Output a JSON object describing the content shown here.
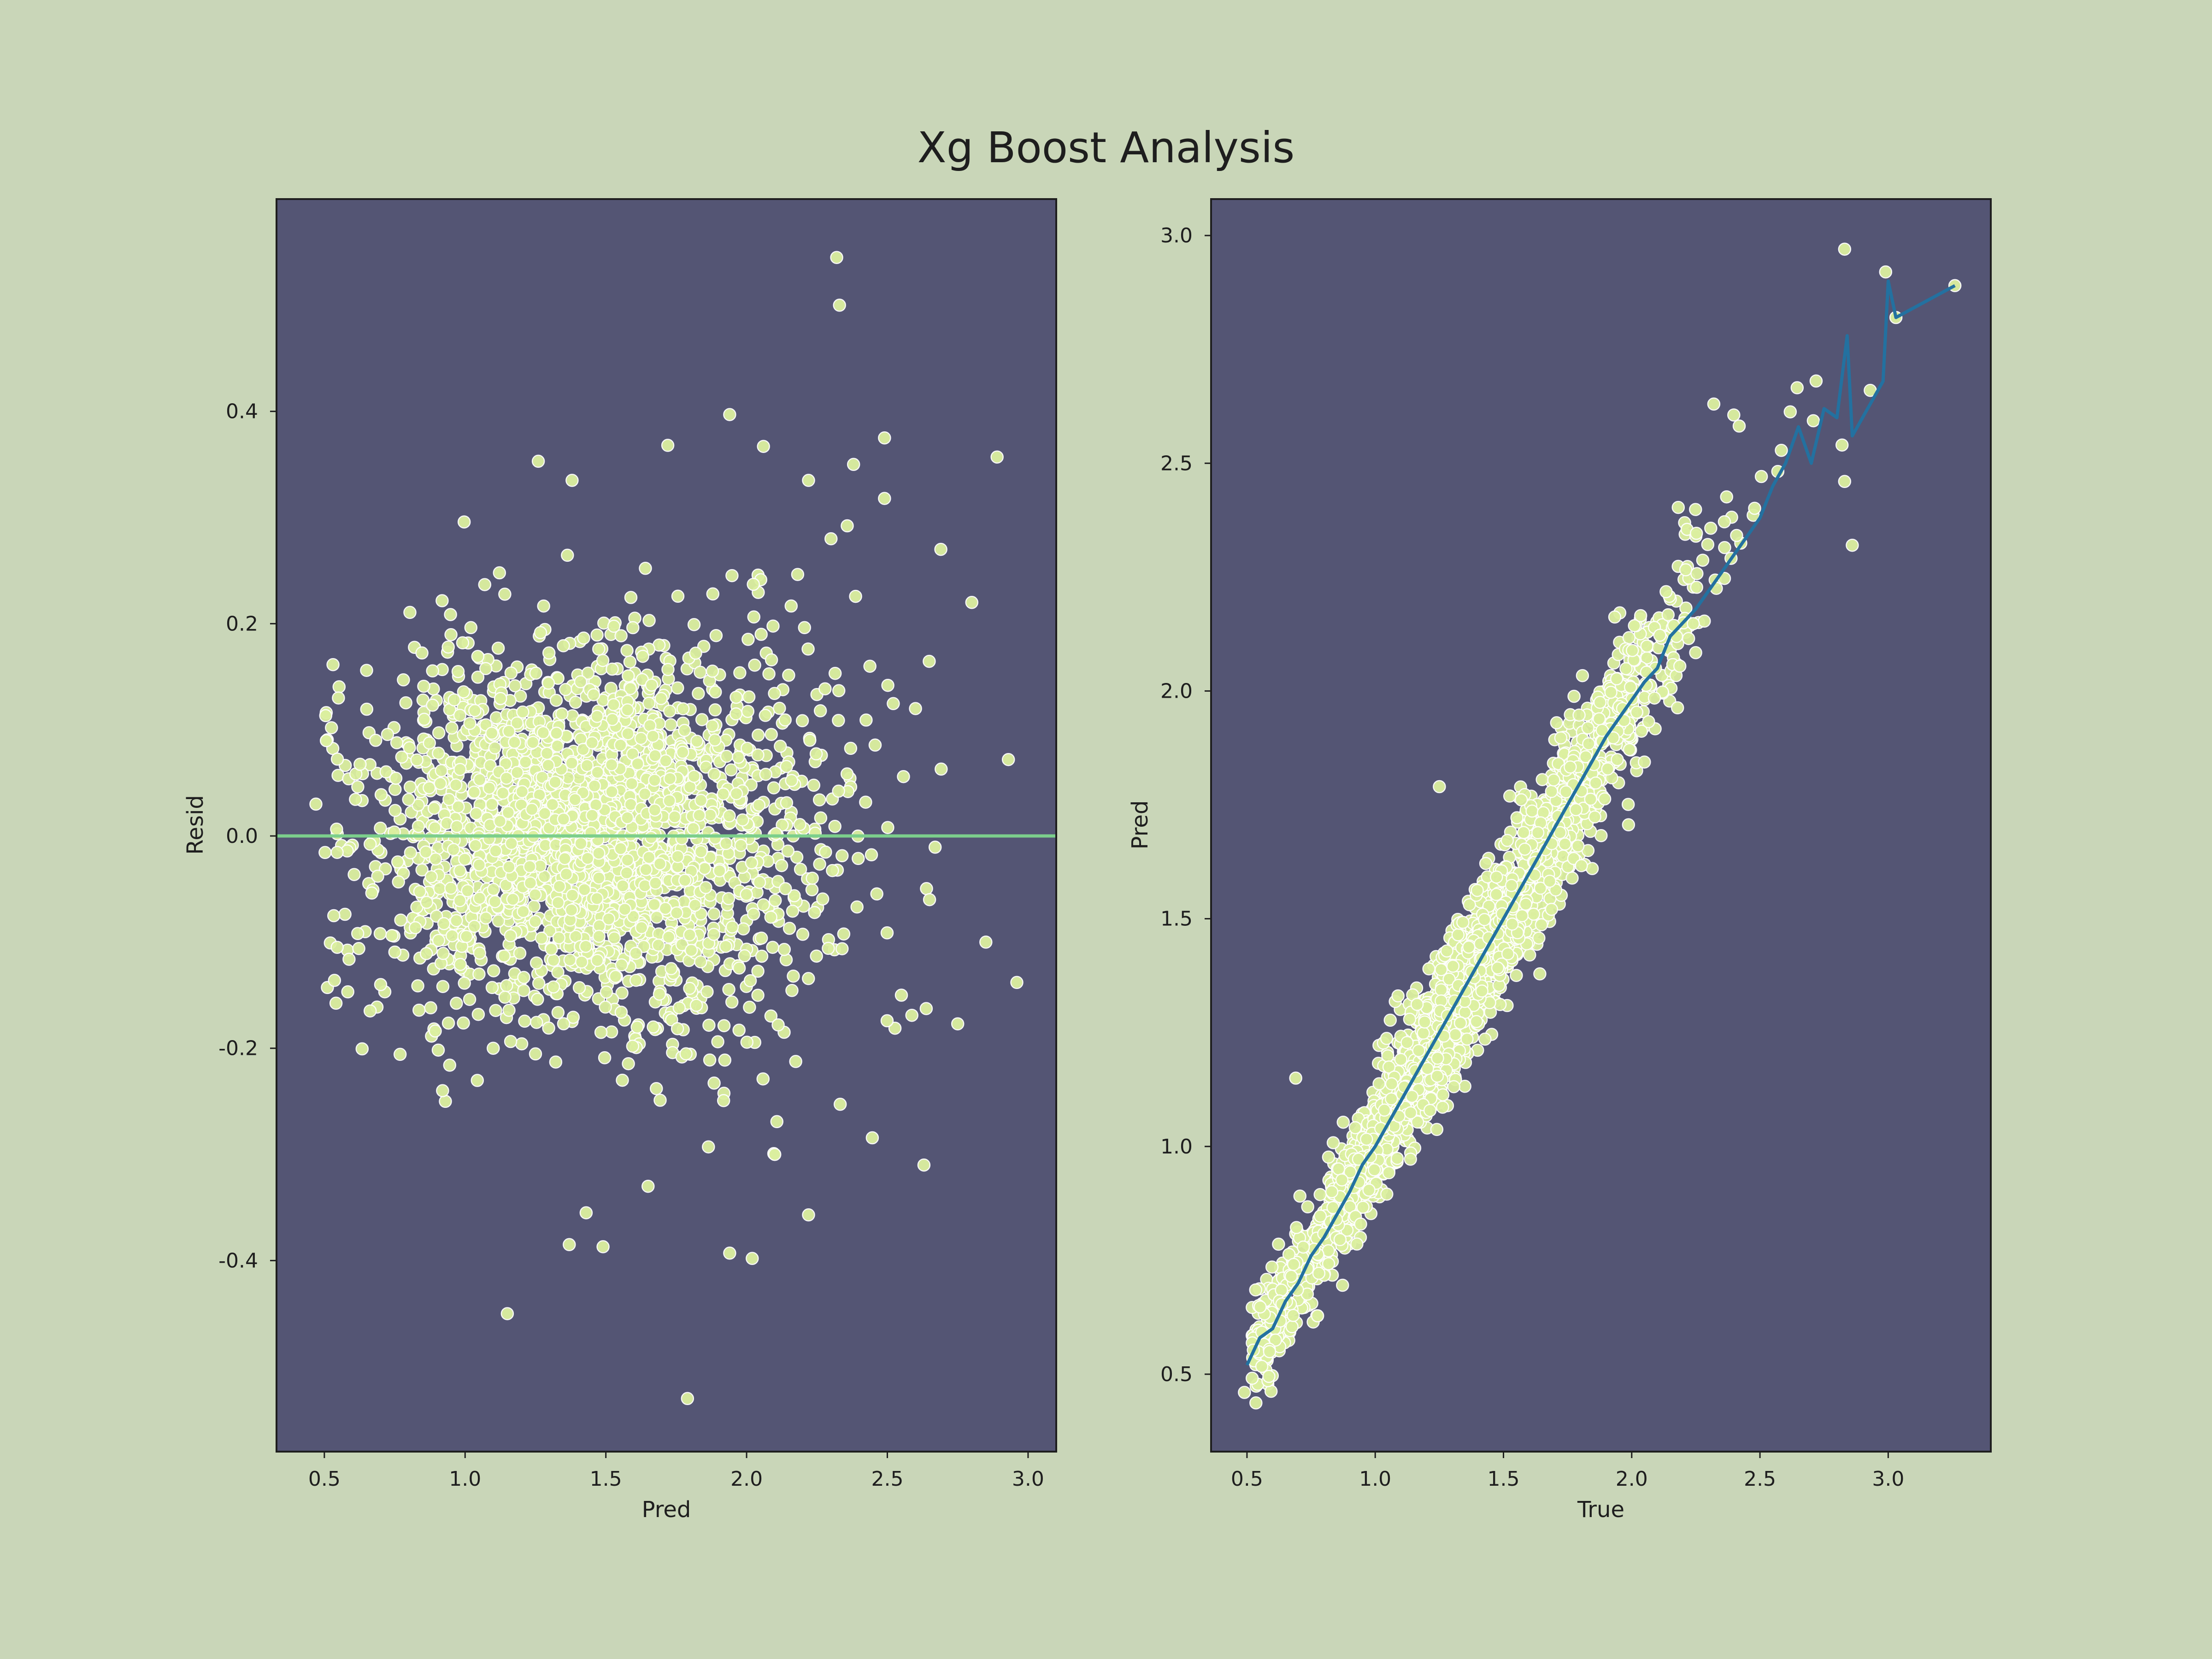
{
  "figure": {
    "title": "Xg Boost Analysis",
    "background": "#c9d6b8",
    "panel_background": "#545574",
    "point_color": "#dcf0a0",
    "point_edge": "#ffffff",
    "zero_line_color": "#7ccf8c",
    "mean_line_color": "#2371a0"
  },
  "chart_data": [
    {
      "id": "residuals",
      "type": "scatter",
      "xlabel": "Pred",
      "ylabel": "Resid",
      "xlim": [
        0.33,
        3.1
      ],
      "ylim": [
        -0.58,
        0.6
      ],
      "xticks": [
        0.5,
        1.0,
        1.5,
        2.0,
        2.5,
        3.0
      ],
      "xtick_labels": [
        "0.5",
        "1.0",
        "1.5",
        "2.0",
        "2.5",
        "3.0"
      ],
      "yticks": [
        -0.4,
        -0.2,
        0.0,
        0.2,
        0.4
      ],
      "ytick_labels": [
        "-0.4",
        "-0.2",
        "0.0",
        "0.2",
        "0.4"
      ],
      "hline_y": 0.0,
      "grid": false,
      "outliers": [
        [
          2.32,
          0.545
        ],
        [
          2.33,
          0.5
        ],
        [
          1.94,
          0.397
        ],
        [
          2.06,
          0.367
        ],
        [
          2.89,
          0.357
        ],
        [
          1.26,
          0.353
        ],
        [
          2.49,
          0.375
        ],
        [
          2.38,
          0.35
        ],
        [
          1.72,
          0.368
        ],
        [
          1.38,
          0.335
        ],
        [
          2.22,
          0.335
        ],
        [
          2.49,
          0.318
        ],
        [
          2.69,
          0.27
        ],
        [
          2.8,
          0.22
        ],
        [
          2.93,
          0.072
        ],
        [
          2.96,
          -0.138
        ],
        [
          2.75,
          -0.177
        ],
        [
          2.85,
          -0.1
        ],
        [
          2.63,
          -0.31
        ],
        [
          2.22,
          -0.357
        ],
        [
          1.15,
          -0.45
        ],
        [
          1.79,
          -0.53
        ],
        [
          2.02,
          -0.398
        ],
        [
          1.94,
          -0.393
        ],
        [
          1.49,
          -0.387
        ],
        [
          1.37,
          -0.385
        ],
        [
          1.43,
          -0.355
        ],
        [
          0.93,
          -0.25
        ],
        [
          0.92,
          -0.24
        ],
        [
          0.65,
          0.156
        ],
        [
          0.55,
          0.13
        ],
        [
          0.47,
          0.03
        ],
        [
          2.65,
          -0.06
        ],
        [
          2.6,
          0.12
        ],
        [
          2.3,
          0.28
        ],
        [
          2.1,
          -0.3
        ],
        [
          1.65,
          -0.33
        ],
        [
          1.1,
          -0.2
        ],
        [
          0.7,
          -0.14
        ],
        [
          2.55,
          -0.15
        ]
      ]
    },
    {
      "id": "pred-vs-true",
      "type": "scatter",
      "xlabel": "True",
      "ylabel": "Pred",
      "xlim": [
        0.36,
        3.4
      ],
      "ylim": [
        0.33,
        3.08
      ],
      "xticks": [
        0.5,
        1.0,
        1.5,
        2.0,
        2.5,
        3.0
      ],
      "xtick_labels": [
        "0.5",
        "1.0",
        "1.5",
        "2.0",
        "2.5",
        "3.0"
      ],
      "yticks": [
        0.5,
        1.0,
        1.5,
        2.0,
        2.5,
        3.0
      ],
      "ytick_labels": [
        "0.5",
        "1.0",
        "1.5",
        "2.0",
        "2.5",
        "3.0"
      ],
      "grid": false,
      "outliers": [
        [
          0.49,
          0.46
        ],
        [
          0.69,
          1.15
        ],
        [
          1.25,
          1.79
        ],
        [
          2.32,
          2.63
        ],
        [
          2.83,
          2.97
        ],
        [
          3.26,
          2.89
        ],
        [
          3.03,
          2.82
        ],
        [
          2.99,
          2.92
        ],
        [
          2.82,
          2.54
        ],
        [
          2.86,
          2.32
        ],
        [
          2.83,
          2.46
        ],
        [
          2.93,
          2.66
        ]
      ],
      "mean_line": [
        [
          0.5,
          0.52
        ],
        [
          0.55,
          0.58
        ],
        [
          0.6,
          0.6
        ],
        [
          0.65,
          0.66
        ],
        [
          0.7,
          0.7
        ],
        [
          0.75,
          0.76
        ],
        [
          0.8,
          0.8
        ],
        [
          0.85,
          0.85
        ],
        [
          0.9,
          0.9
        ],
        [
          0.95,
          0.96
        ],
        [
          1.0,
          1.0
        ],
        [
          1.05,
          1.05
        ],
        [
          1.1,
          1.1
        ],
        [
          1.15,
          1.15
        ],
        [
          1.2,
          1.2
        ],
        [
          1.25,
          1.25
        ],
        [
          1.3,
          1.3
        ],
        [
          1.35,
          1.35
        ],
        [
          1.4,
          1.4
        ],
        [
          1.45,
          1.45
        ],
        [
          1.5,
          1.5
        ],
        [
          1.55,
          1.55
        ],
        [
          1.6,
          1.6
        ],
        [
          1.65,
          1.65
        ],
        [
          1.7,
          1.7
        ],
        [
          1.75,
          1.75
        ],
        [
          1.8,
          1.8
        ],
        [
          1.85,
          1.85
        ],
        [
          1.9,
          1.9
        ],
        [
          1.95,
          1.94
        ],
        [
          2.0,
          1.98
        ],
        [
          2.05,
          2.02
        ],
        [
          2.1,
          2.05
        ],
        [
          2.15,
          2.12
        ],
        [
          2.2,
          2.15
        ],
        [
          2.25,
          2.18
        ],
        [
          2.3,
          2.22
        ],
        [
          2.35,
          2.26
        ],
        [
          2.4,
          2.3
        ],
        [
          2.45,
          2.34
        ],
        [
          2.5,
          2.38
        ],
        [
          2.55,
          2.45
        ],
        [
          2.6,
          2.5
        ],
        [
          2.65,
          2.58
        ],
        [
          2.7,
          2.5
        ],
        [
          2.75,
          2.62
        ],
        [
          2.8,
          2.6
        ],
        [
          2.84,
          2.78
        ],
        [
          2.86,
          2.56
        ],
        [
          2.98,
          2.68
        ],
        [
          3.0,
          2.9
        ],
        [
          3.03,
          2.82
        ],
        [
          3.26,
          2.89
        ]
      ]
    }
  ]
}
